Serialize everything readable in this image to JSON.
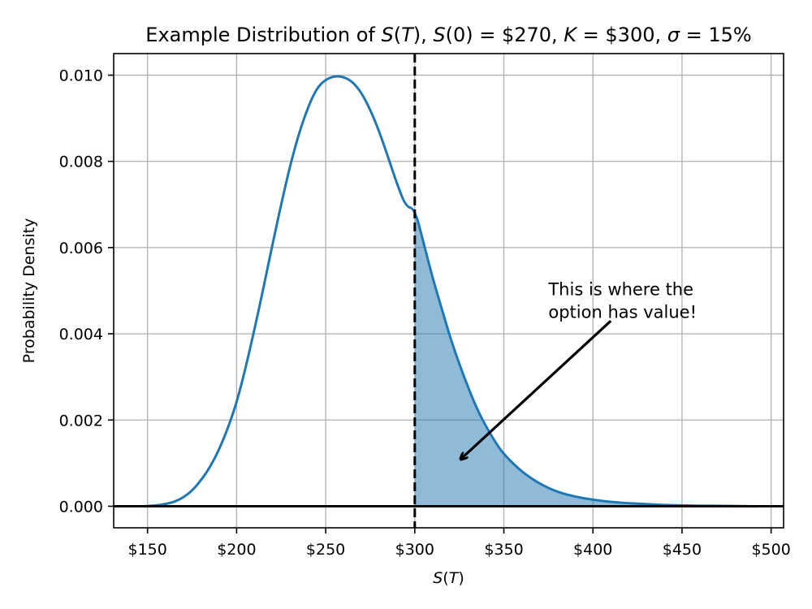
{
  "chart_data": {
    "type": "line",
    "title_parts": [
      {
        "t": "Example Distribution of ",
        "i": false
      },
      {
        "t": "S",
        "i": true
      },
      {
        "t": "(",
        "i": false
      },
      {
        "t": "T",
        "i": true
      },
      {
        "t": "), ",
        "i": false
      },
      {
        "t": "S",
        "i": true
      },
      {
        "t": "(0) = $270, ",
        "i": false
      },
      {
        "t": "K",
        "i": true
      },
      {
        "t": " = $300, ",
        "i": false
      },
      {
        "t": "σ",
        "i": true
      },
      {
        "t": " = 15%",
        "i": false
      }
    ],
    "xlabel_parts": [
      {
        "t": "S",
        "i": true
      },
      {
        "t": "(",
        "i": false
      },
      {
        "t": "T",
        "i": true
      },
      {
        "t": ")",
        "i": false
      }
    ],
    "ylabel": "Probability Density",
    "xlim": [
      131,
      507
    ],
    "ylim": [
      -0.0005,
      0.0105
    ],
    "x_ticks": [
      150,
      200,
      250,
      300,
      350,
      400,
      450,
      500
    ],
    "x_tick_labels": [
      "$150",
      "$200",
      "$250",
      "$300",
      "$350",
      "$400",
      "$450",
      "$500"
    ],
    "y_ticks": [
      0.0,
      0.002,
      0.004,
      0.006,
      0.008,
      0.01
    ],
    "y_tick_labels": [
      "0.000",
      "0.002",
      "0.004",
      "0.006",
      "0.008",
      "0.010"
    ],
    "grid": true,
    "curve": {
      "x": [
        148,
        155,
        160,
        165,
        170,
        175,
        180,
        185,
        190,
        195,
        200,
        205,
        210,
        215,
        220,
        225,
        230,
        235,
        240,
        245,
        250,
        255,
        260,
        265,
        270,
        275,
        280,
        285,
        290,
        295,
        300,
        305,
        310,
        315,
        320,
        325,
        330,
        335,
        340,
        345,
        350,
        360,
        370,
        380,
        390,
        400,
        410,
        420,
        430,
        440,
        450,
        460,
        470,
        480,
        492
      ],
      "y": [
        0.0,
        2e-05,
        5e-05,
        0.0001,
        0.0002,
        0.00036,
        0.0006,
        0.0009,
        0.0013,
        0.0018,
        0.0024,
        0.0032,
        0.0041,
        0.00505,
        0.00605,
        0.007,
        0.0079,
        0.00865,
        0.00925,
        0.0097,
        0.0099,
        0.00998,
        0.00996,
        0.00985,
        0.0096,
        0.0092,
        0.0087,
        0.0081,
        0.00748,
        0.00695,
        0.0069,
        0.0061,
        0.0053,
        0.0046,
        0.0039,
        0.0033,
        0.00275,
        0.00225,
        0.00185,
        0.0015,
        0.0012,
        0.0008,
        0.00052,
        0.00033,
        0.00022,
        0.00015,
        0.0001,
        7e-05,
        5e-05,
        3e-05,
        2e-05,
        1e-05,
        1e-05,
        5e-06,
        0.0
      ],
      "color": "#1f77b4"
    },
    "shaded_region": {
      "x_from": 300,
      "x_to": 492,
      "color": "#1f77b4",
      "opacity": 0.5
    },
    "strike_line": {
      "x": 300,
      "style": "dashed",
      "color": "#000000"
    },
    "zero_line": {
      "y": 0,
      "color": "#000000"
    },
    "annotation": {
      "lines": [
        "This is where the",
        "option has value!"
      ],
      "text_at": [
        375,
        0.0049
      ],
      "arrow_from": [
        410,
        0.0043
      ],
      "arrow_to": [
        326,
        0.0011
      ]
    }
  }
}
